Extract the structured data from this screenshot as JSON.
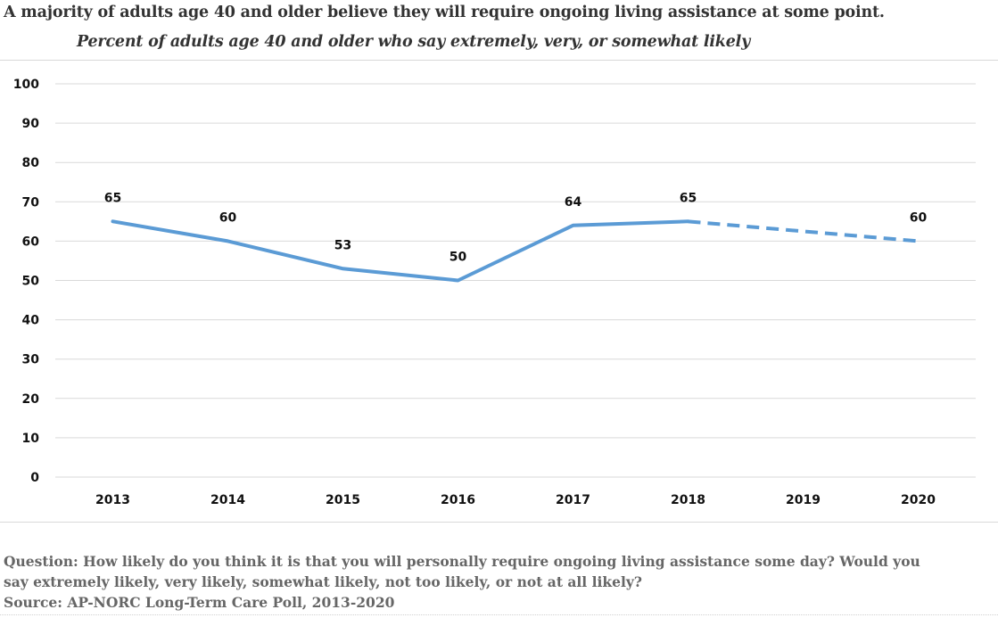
{
  "title": "A majority of adults age 40 and older believe they will require ongoing living assistance at some point.",
  "subtitle": "Percent of adults age 40 and older who say extremely, very, or somewhat likely",
  "footnote": {
    "question_line1": "Question: How likely do you think it is that you will personally require ongoing living assistance some day?  Would you",
    "question_line2": "say extremely likely, very likely, somewhat likely, not too likely, or not at all likely?",
    "source": "Source: AP-NORC Long-Term Care Poll, 2013-2020"
  },
  "colors": {
    "line": "#5b9bd5",
    "grid": "#d9d9d9",
    "text": "#333333",
    "footnote": "#666666"
  },
  "chart_data": {
    "type": "line",
    "categories": [
      "2013",
      "2014",
      "2015",
      "2016",
      "2017",
      "2018",
      "2019",
      "2020"
    ],
    "series": [
      {
        "values": [
          65,
          60,
          53,
          50,
          64,
          65,
          null,
          60
        ],
        "data_labels": [
          "65",
          "60",
          "53",
          "50",
          "64",
          "65",
          "",
          "60"
        ],
        "solid_through": "2018",
        "dashed_segment": [
          "2018",
          "2020"
        ]
      }
    ],
    "ylim": [
      0,
      100
    ],
    "yticks": [
      0,
      10,
      20,
      30,
      40,
      50,
      60,
      70,
      80,
      90,
      100
    ],
    "grid": true,
    "legend": "none",
    "xlabel": "",
    "ylabel": ""
  }
}
